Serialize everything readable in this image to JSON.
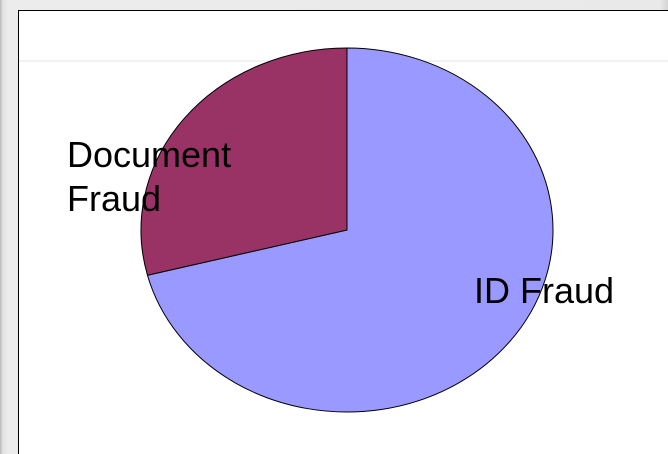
{
  "chart_data": {
    "type": "pie",
    "title": "",
    "slices": [
      {
        "name": "ID Fraud",
        "value": 71,
        "color": "#9999ff"
      },
      {
        "name": "Document Fraud",
        "value": 29,
        "color": "#993366"
      }
    ],
    "labels": [
      {
        "slice": 0,
        "lines": [
          "ID Fraud"
        ]
      },
      {
        "slice": 1,
        "lines": [
          "Document",
          "Fraud"
        ]
      }
    ],
    "start_angle_deg": 0,
    "direction": "clockwise",
    "legend": "none"
  }
}
